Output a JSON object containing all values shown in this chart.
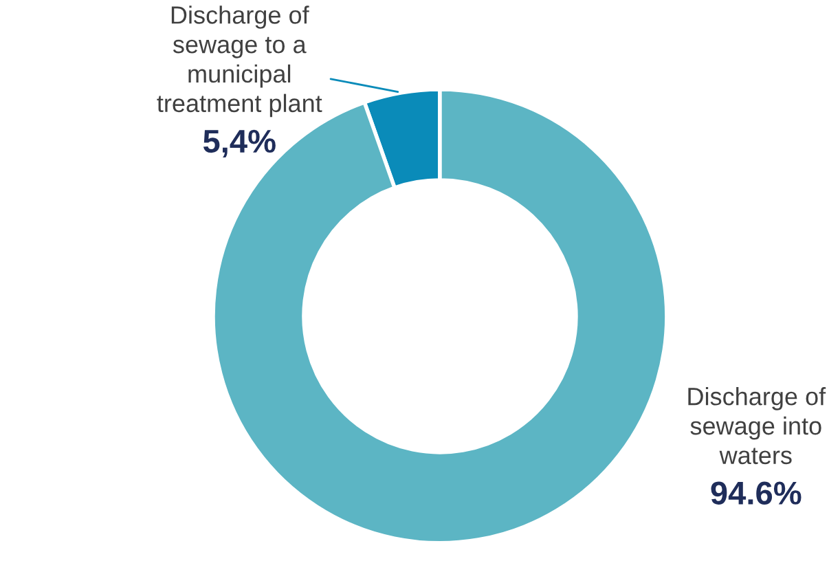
{
  "chart_data": {
    "type": "donut",
    "categories": [
      "Discharge of\nsewage to a\nmunicipal\ntreatment plant",
      "Discharge of\nsewage into\nwaters"
    ],
    "values": [
      5.4,
      94.6
    ],
    "colors": [
      "#0a8bb9",
      "#5cb5c4"
    ],
    "value_labels": [
      "5,4%",
      "94.6%"
    ]
  }
}
